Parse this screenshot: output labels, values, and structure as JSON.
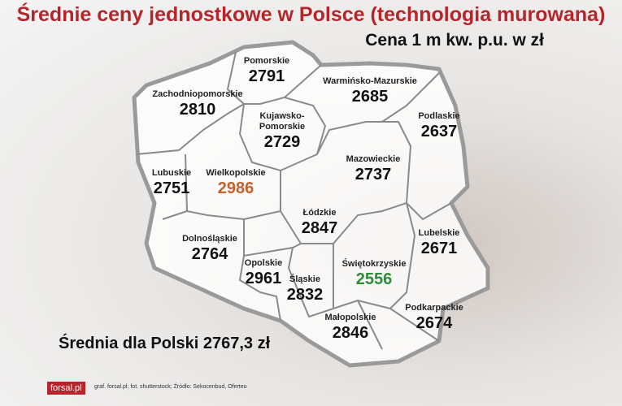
{
  "title": "Średnie ceny jednostkowe w Polsce (technologia murowana)",
  "subtitle": "Cena 1 m kw. p.u. w zł",
  "regions": [
    {
      "name": "Pomorskie",
      "value": 2791,
      "color": "#111111"
    },
    {
      "name": "Warmińsko-Mazurskie",
      "value": 2685,
      "color": "#111111"
    },
    {
      "name": "Zachodniopomorskie",
      "value": 2810,
      "color": "#111111"
    },
    {
      "name": "Kujawsko-Pomorskie",
      "value": 2729,
      "color": "#111111"
    },
    {
      "name": "Podlaskie",
      "value": 2637,
      "color": "#111111"
    },
    {
      "name": "Mazowieckie",
      "value": 2737,
      "color": "#111111"
    },
    {
      "name": "Lubuskie",
      "value": 2751,
      "color": "#111111"
    },
    {
      "name": "Wielkopolskie",
      "value": 2986,
      "color": "#c5622a"
    },
    {
      "name": "Łódzkie",
      "value": 2847,
      "color": "#111111"
    },
    {
      "name": "Lubelskie",
      "value": 2671,
      "color": "#111111"
    },
    {
      "name": "Dolnośląskie",
      "value": 2764,
      "color": "#111111"
    },
    {
      "name": "Opolskie",
      "value": 2961,
      "color": "#111111"
    },
    {
      "name": "Śląskie",
      "value": 2832,
      "color": "#111111"
    },
    {
      "name": "Świętokrzyskie",
      "value": 2556,
      "color": "#2e8b3a"
    },
    {
      "name": "Małopolskie",
      "value": 2846,
      "color": "#111111"
    },
    {
      "name": "Podkarpackie",
      "value": 2674,
      "color": "#111111"
    }
  ],
  "average": "Średnia dla Polski 2767,3 zł",
  "logo": "forsal.pl",
  "credits": "graf. forsal.pl; fot. shutterstock; Źródło: Sekocenbud, Oferteo"
}
